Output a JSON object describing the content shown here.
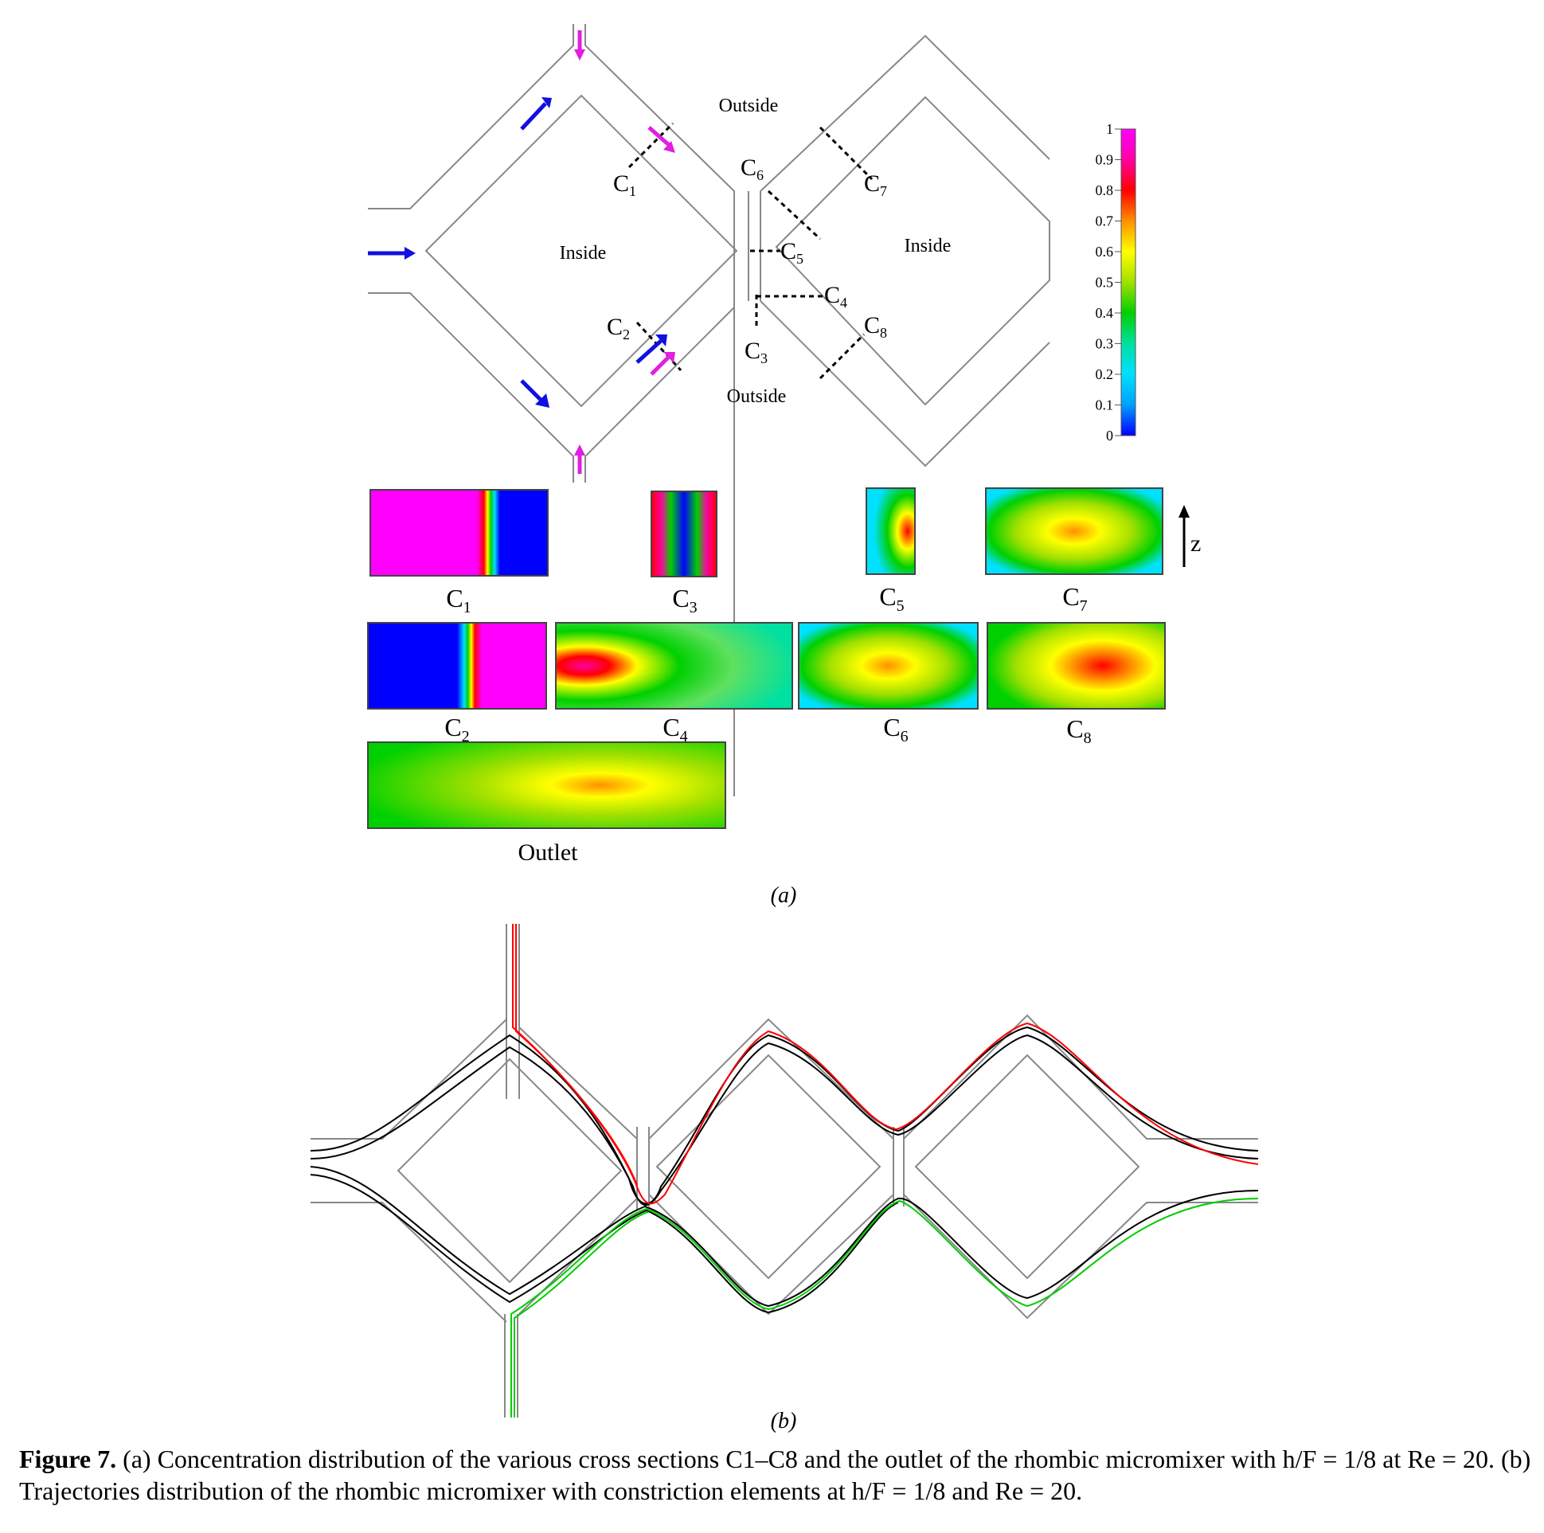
{
  "panel_a": {
    "label": "(a)",
    "region_outside_top": "Outside",
    "region_outside_bottom": "Outside",
    "region_inside_left": "Inside",
    "region_inside_right": "Inside",
    "sections": [
      "C1",
      "C2",
      "C3",
      "C4",
      "C5",
      "C6",
      "C7",
      "C8"
    ],
    "outlet_label": "Outlet",
    "axis_label": "z",
    "colorbar": {
      "ticks": [
        "0",
        "0.1",
        "0.2",
        "0.3",
        "0.4",
        "0.5",
        "0.6",
        "0.7",
        "0.8",
        "0.9",
        "1"
      ],
      "colors": [
        "#0000ff",
        "#00a0ff",
        "#00e0ff",
        "#00e0a0",
        "#00d000",
        "#a0e000",
        "#ffff00",
        "#ff9000",
        "#ff0000",
        "#ff00a0",
        "#ff00ff"
      ]
    }
  },
  "panel_b": {
    "label": "(b)",
    "trajectory_colors": [
      "#000000",
      "#ff0000",
      "#00cc00"
    ]
  },
  "caption": {
    "figure_label": "Figure 7.",
    "text": "(a) Concentration distribution of the various cross sections C1–C8 and the outlet of the rhombic micromixer with h/F = 1/8 at Re = 20. (b) Trajectories distribution of the rhombic micromixer with constriction elements at h/F = 1/8 and Re = 20."
  }
}
